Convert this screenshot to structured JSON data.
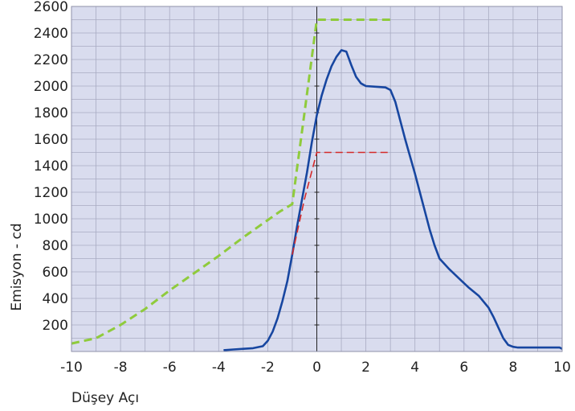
{
  "chart_data": {
    "type": "line",
    "title": "",
    "xlabel": "Düşey Açı",
    "ylabel": "Emisyon - cd",
    "xlim": [
      -10,
      10
    ],
    "ylim": [
      0,
      2600
    ],
    "x_ticks": [
      -10,
      -8,
      -6,
      -4,
      -2,
      0,
      2,
      4,
      6,
      8,
      10
    ],
    "y_ticks": [
      200,
      400,
      600,
      800,
      1000,
      1200,
      1400,
      1600,
      1800,
      2000,
      2200,
      2400,
      2600
    ],
    "grid": true,
    "legend": "none",
    "background_color": "#d9dcee",
    "grid_color": "#a9abc2",
    "series": [
      {
        "color": "#1746a0",
        "style": "solid",
        "x": [
          -3.8,
          -3.4,
          -3,
          -2.6,
          -2.2,
          -2,
          -1.8,
          -1.6,
          -1.4,
          -1.2,
          -1,
          -0.8,
          -0.6,
          -0.4,
          -0.2,
          0,
          0.2,
          0.4,
          0.6,
          0.8,
          1,
          1.2,
          1.4,
          1.6,
          1.8,
          2,
          2.4,
          2.8,
          3,
          3.2,
          3.4,
          3.6,
          3.8,
          4,
          4.2,
          4.4,
          4.6,
          4.8,
          5,
          5.4,
          5.8,
          6.2,
          6.6,
          7,
          7.2,
          7.4,
          7.6,
          7.8,
          8,
          8.2,
          8.4,
          9,
          9.5,
          9.9,
          10
        ],
        "y": [
          10,
          15,
          20,
          25,
          40,
          80,
          150,
          250,
          380,
          530,
          730,
          950,
          1150,
          1350,
          1580,
          1780,
          1930,
          2050,
          2150,
          2220,
          2270,
          2260,
          2160,
          2070,
          2020,
          2000,
          1995,
          1990,
          1970,
          1880,
          1740,
          1600,
          1470,
          1340,
          1200,
          1060,
          920,
          800,
          700,
          620,
          550,
          480,
          420,
          330,
          260,
          180,
          100,
          50,
          35,
          30,
          30,
          30,
          30,
          30,
          20
        ]
      },
      {
        "color": "#8fcb3c",
        "style": "dashed",
        "x": [
          -10,
          -9,
          -8,
          -7,
          -6,
          -5,
          -4,
          -3,
          -2,
          -1.5,
          -1,
          -0.5,
          0,
          0.5,
          1,
          2,
          3
        ],
        "y": [
          60,
          100,
          200,
          320,
          460,
          590,
          720,
          860,
          990,
          1055,
          1110,
          1800,
          2500,
          2500,
          2500,
          2500,
          2500
        ]
      },
      {
        "color": "#d42a2a",
        "style": "dashed",
        "x": [
          -1,
          -0.5,
          0,
          0.5,
          1,
          2,
          2.9
        ],
        "y": [
          730,
          1150,
          1500,
          1500,
          1500,
          1500,
          1500
        ]
      }
    ]
  }
}
